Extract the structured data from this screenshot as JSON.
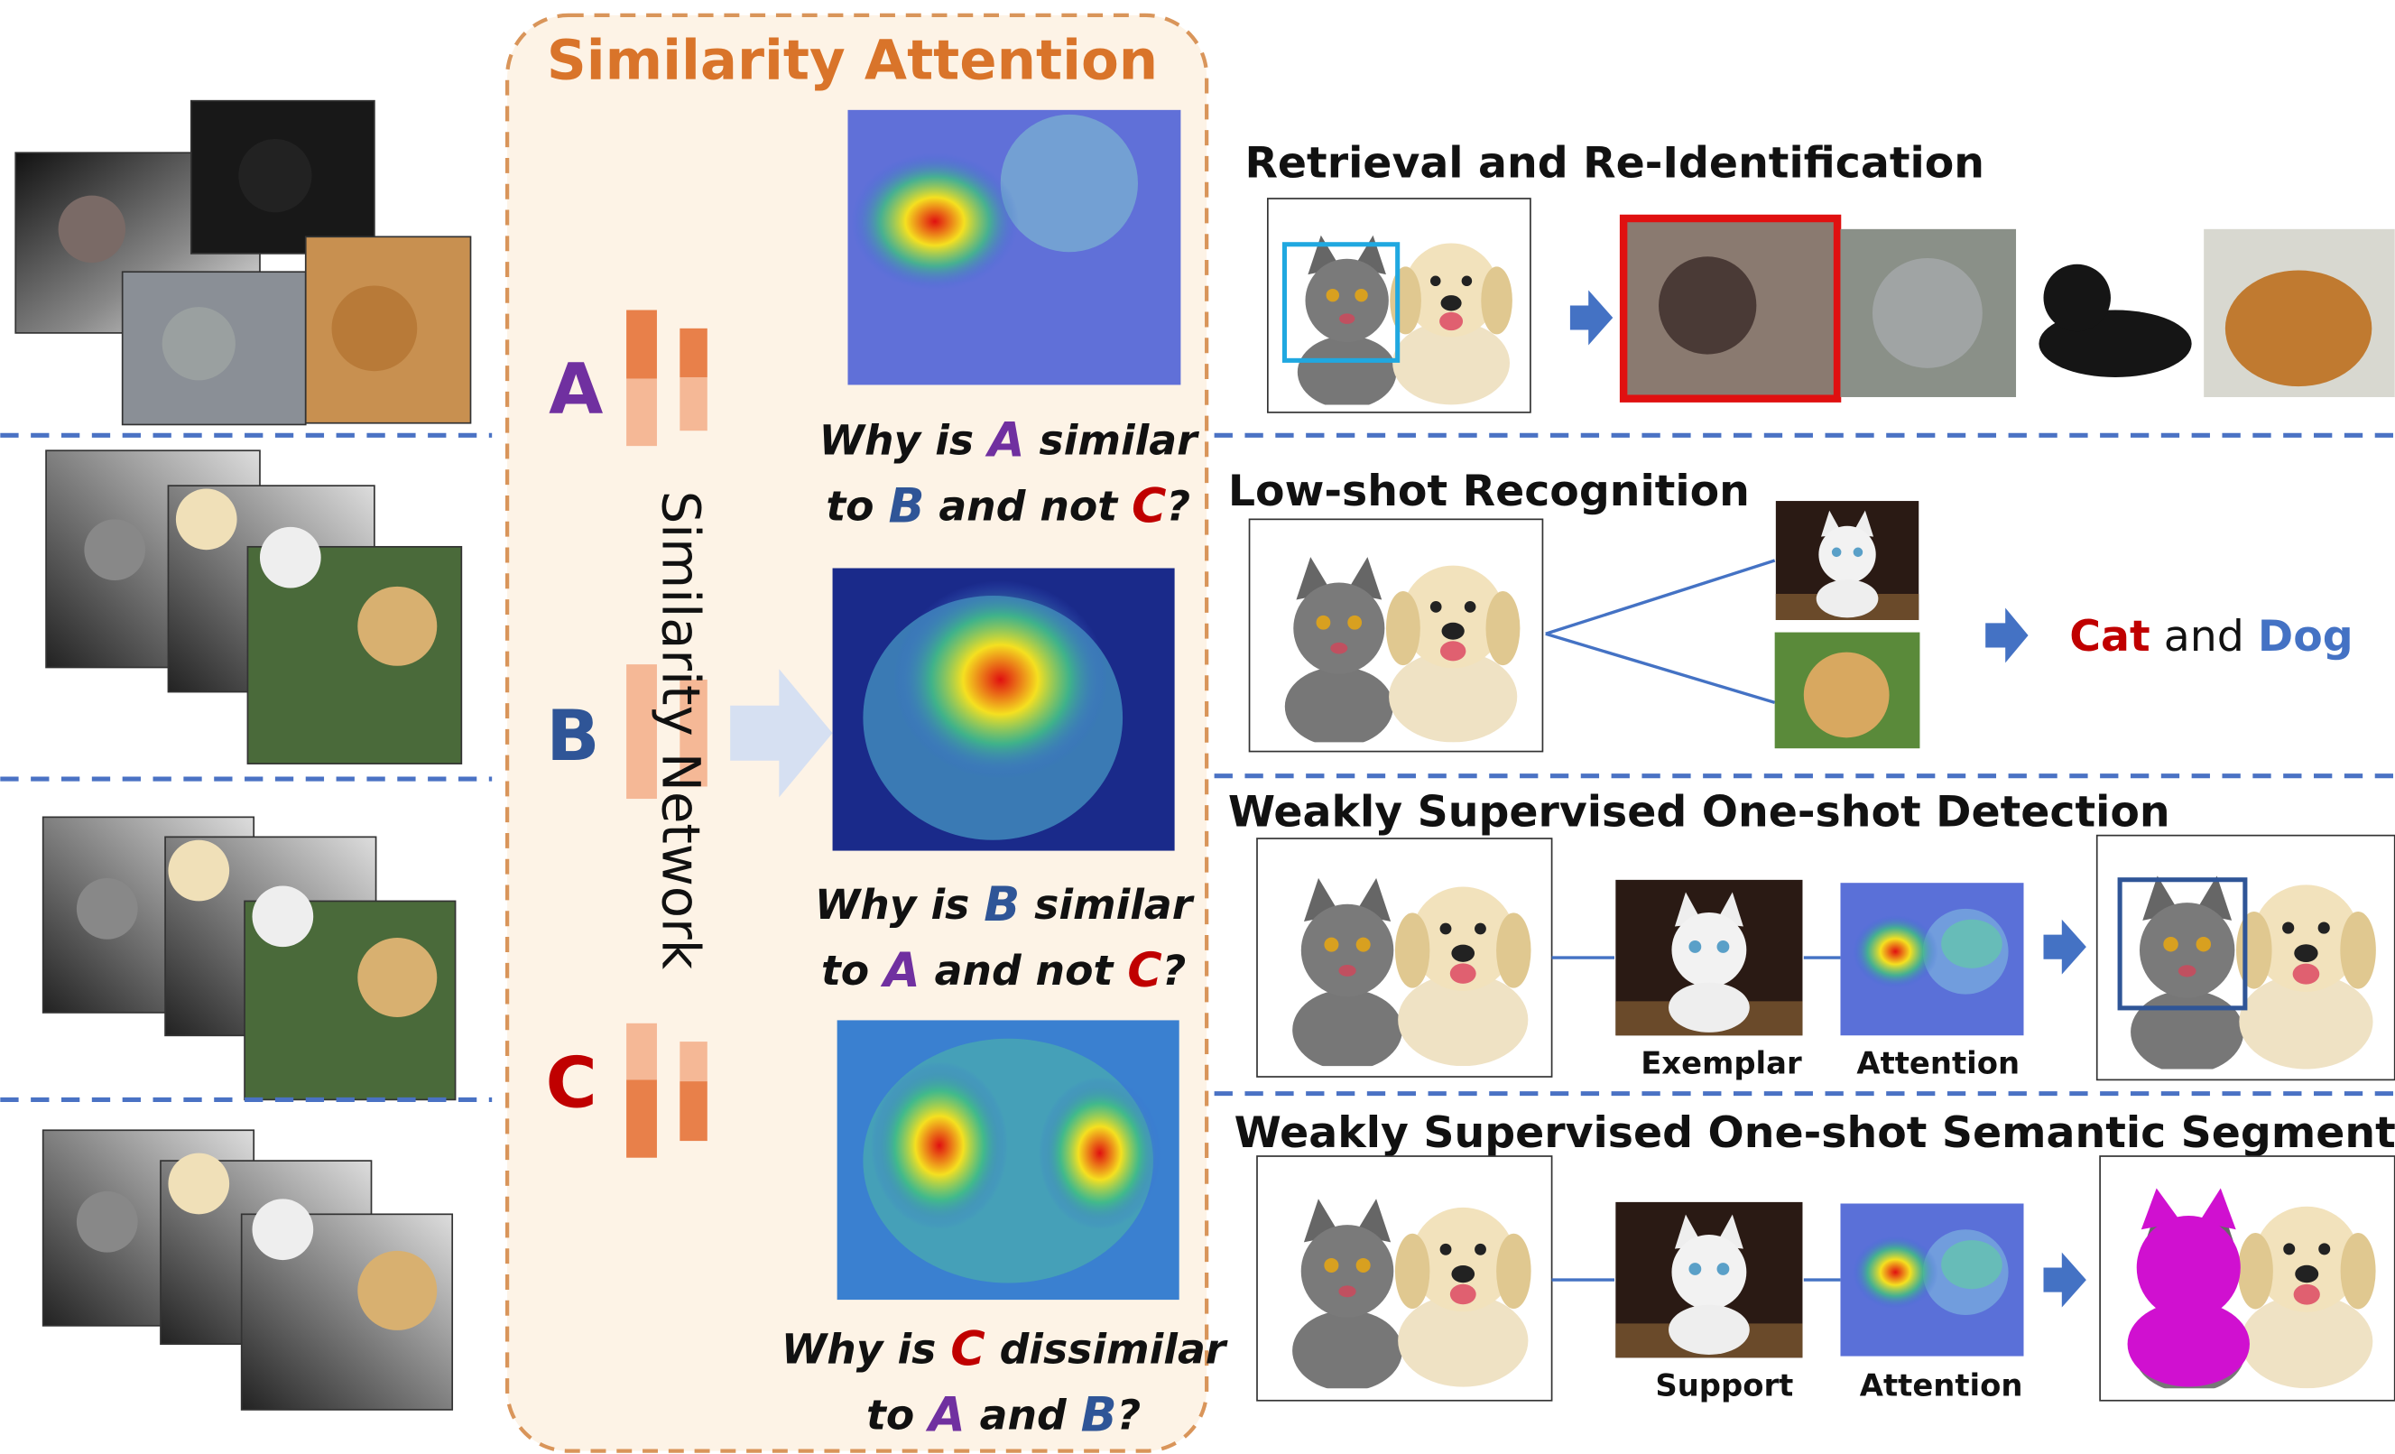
{
  "panel": {
    "title": "Similarity Attention",
    "labels": [
      "A",
      "B",
      "C"
    ],
    "network": "Similarity Network",
    "questions": [
      [
        [
          "Why is ",
          "A",
          " similar"
        ],
        [
          "to ",
          "B",
          " and not ",
          "C",
          "?"
        ]
      ],
      [
        [
          "Why is ",
          "B",
          " similar"
        ],
        [
          "to ",
          "A",
          " and not ",
          "C",
          "?"
        ]
      ],
      [
        [
          "Why is ",
          "C",
          " dissimilar"
        ],
        [
          "to ",
          "A",
          " and ",
          "B",
          "?"
        ]
      ]
    ]
  },
  "tasks": {
    "retrieval": "Retrieval and Re-Identification",
    "lowshot": "Low-shot Recognition",
    "lowshot_result": [
      "Cat",
      " and ",
      "Dog"
    ],
    "detection": "Weakly Supervised One-shot Detection",
    "detection_labels": [
      "Exemplar",
      "Attention"
    ],
    "segmentation": "Weakly Supervised One-shot Semantic Segmentation",
    "segmentation_labels": [
      "Support",
      "Attention"
    ]
  }
}
